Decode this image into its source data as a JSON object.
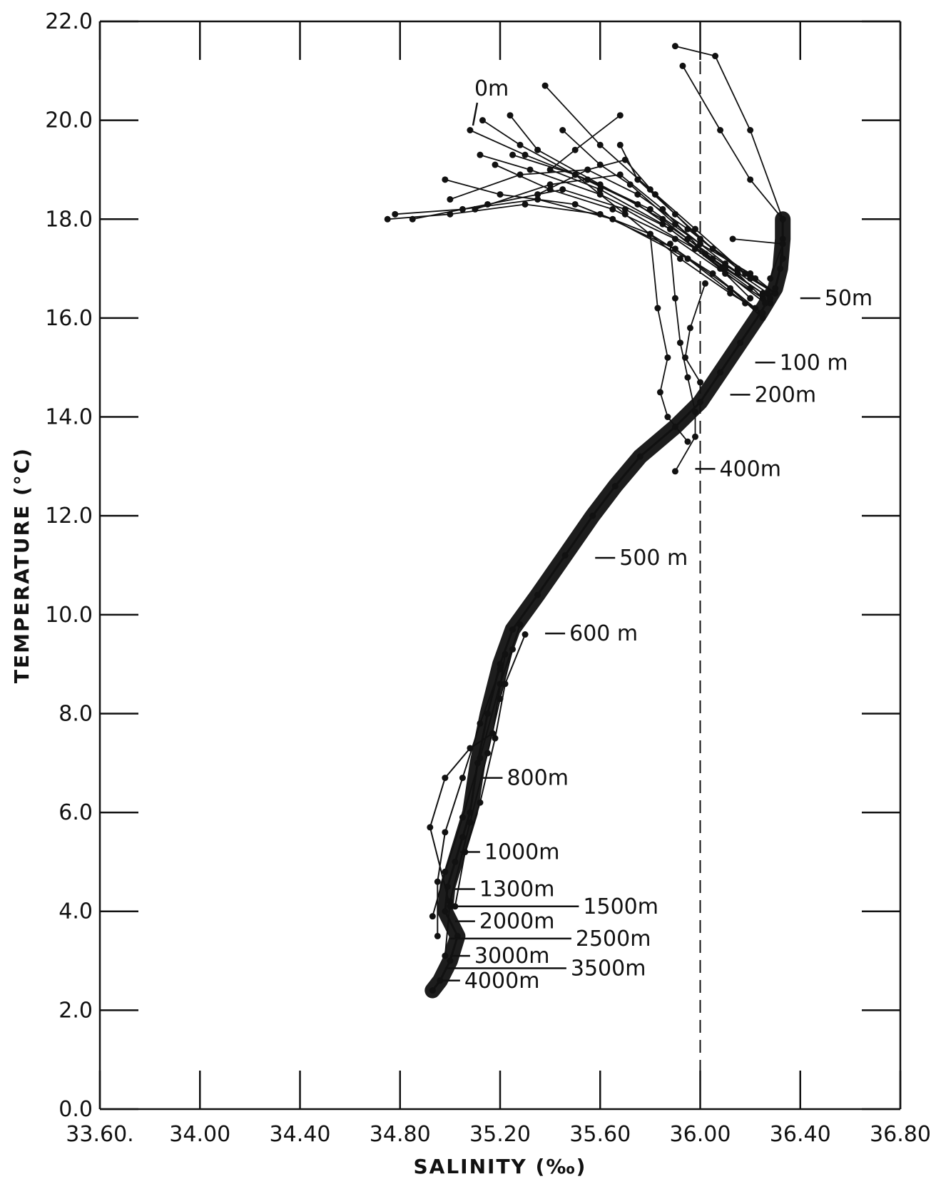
{
  "chart_data": {
    "type": "line",
    "title": "",
    "xlabel": "SALINITY (‰)",
    "ylabel": "TEMPERATURE (°C)",
    "xlim": [
      33.6,
      36.8
    ],
    "ylim": [
      0.0,
      22.0
    ],
    "x_tick_labels": [
      "33.60.",
      "34.00",
      "34.40",
      "34.80",
      "35.20",
      "35.60",
      "36.00",
      "36.40",
      "36.80"
    ],
    "x_tick_values": [
      33.6,
      34.0,
      34.4,
      34.8,
      35.2,
      35.6,
      36.0,
      36.4,
      36.8
    ],
    "y_tick_labels": [
      "0.0",
      "2.0",
      "4.0",
      "6.0",
      "8.0",
      "10.0",
      "12.0",
      "14.0",
      "16.0",
      "18.0",
      "20.0",
      "22.0"
    ],
    "y_tick_values": [
      0,
      2,
      4,
      6,
      8,
      10,
      12,
      14,
      16,
      18,
      20,
      22
    ],
    "reference_line": {
      "x": 36.0,
      "style": "dashed"
    },
    "grid": false,
    "main_profile": [
      [
        34.93,
        2.4
      ],
      [
        34.96,
        2.6
      ],
      [
        35.0,
        3.0
      ],
      [
        35.03,
        3.5
      ],
      [
        34.98,
        4.0
      ],
      [
        34.99,
        4.5
      ],
      [
        35.02,
        5.0
      ],
      [
        35.05,
        5.5
      ],
      [
        35.08,
        6.0
      ],
      [
        35.11,
        7.0
      ],
      [
        35.15,
        8.0
      ],
      [
        35.2,
        9.0
      ],
      [
        35.25,
        9.7
      ],
      [
        35.35,
        10.4
      ],
      [
        35.46,
        11.2
      ],
      [
        35.57,
        12.0
      ],
      [
        35.66,
        12.6
      ],
      [
        35.76,
        13.2
      ],
      [
        35.9,
        13.8
      ],
      [
        36.0,
        14.3
      ],
      [
        36.08,
        14.9
      ],
      [
        36.16,
        15.5
      ],
      [
        36.24,
        16.1
      ],
      [
        36.3,
        16.6
      ],
      [
        36.32,
        17.0
      ],
      [
        36.33,
        17.6
      ],
      [
        36.33,
        18.0
      ]
    ],
    "surface_profiles": [
      [
        [
          35.08,
          19.8
        ],
        [
          35.3,
          19.3
        ],
        [
          35.55,
          18.8
        ],
        [
          35.8,
          18.2
        ],
        [
          36.0,
          17.5
        ],
        [
          36.2,
          16.9
        ],
        [
          36.3,
          16.5
        ]
      ],
      [
        [
          35.13,
          20.0
        ],
        [
          35.28,
          19.5
        ],
        [
          35.5,
          18.9
        ],
        [
          35.75,
          18.3
        ],
        [
          35.95,
          17.6
        ],
        [
          36.15,
          16.9
        ],
        [
          36.25,
          16.4
        ]
      ],
      [
        [
          35.24,
          20.1
        ],
        [
          35.35,
          19.4
        ],
        [
          35.6,
          18.7
        ],
        [
          35.85,
          18.0
        ],
        [
          36.05,
          17.2
        ],
        [
          36.25,
          16.5
        ]
      ],
      [
        [
          35.18,
          19.1
        ],
        [
          35.4,
          18.6
        ],
        [
          35.65,
          18.2
        ],
        [
          35.9,
          17.6
        ],
        [
          36.1,
          16.9
        ],
        [
          36.28,
          16.3
        ]
      ],
      [
        [
          34.98,
          18.8
        ],
        [
          35.2,
          18.5
        ],
        [
          35.5,
          18.3
        ],
        [
          35.8,
          17.7
        ],
        [
          36.05,
          16.9
        ],
        [
          36.22,
          16.2
        ]
      ],
      [
        [
          34.75,
          18.0
        ],
        [
          35.0,
          18.1
        ],
        [
          35.3,
          18.3
        ],
        [
          35.6,
          18.1
        ],
        [
          35.9,
          17.4
        ],
        [
          36.12,
          16.6
        ],
        [
          36.25,
          16.0
        ]
      ],
      [
        [
          34.78,
          18.1
        ],
        [
          35.05,
          18.2
        ],
        [
          35.35,
          18.4
        ],
        [
          35.65,
          18.0
        ],
        [
          35.95,
          17.2
        ],
        [
          36.18,
          16.3
        ]
      ],
      [
        [
          34.85,
          18.0
        ],
        [
          35.15,
          18.3
        ],
        [
          35.45,
          18.6
        ],
        [
          35.7,
          18.2
        ],
        [
          35.98,
          17.4
        ],
        [
          36.2,
          16.6
        ]
      ],
      [
        [
          35.0,
          18.4
        ],
        [
          35.28,
          18.9
        ],
        [
          35.55,
          19.0
        ],
        [
          35.75,
          18.5
        ],
        [
          35.95,
          17.8
        ],
        [
          36.15,
          17.0
        ]
      ],
      [
        [
          35.1,
          18.2
        ],
        [
          35.4,
          18.7
        ],
        [
          35.68,
          18.9
        ],
        [
          35.85,
          18.2
        ],
        [
          36.02,
          17.3
        ],
        [
          36.2,
          16.4
        ]
      ],
      [
        [
          35.35,
          18.5
        ],
        [
          35.55,
          19.0
        ],
        [
          35.7,
          19.2
        ],
        [
          35.82,
          18.5
        ],
        [
          36.0,
          17.6
        ],
        [
          36.22,
          16.8
        ]
      ],
      [
        [
          35.45,
          19.8
        ],
        [
          35.6,
          19.1
        ],
        [
          35.72,
          18.7
        ],
        [
          35.9,
          17.9
        ],
        [
          36.1,
          17.1
        ],
        [
          36.27,
          16.5
        ]
      ],
      [
        [
          35.38,
          20.7
        ],
        [
          35.6,
          19.5
        ],
        [
          35.8,
          18.6
        ],
        [
          35.98,
          17.8
        ],
        [
          36.18,
          16.9
        ],
        [
          36.3,
          16.5
        ]
      ],
      [
        [
          35.68,
          20.1
        ],
        [
          35.5,
          19.4
        ],
        [
          35.4,
          19.0
        ],
        [
          35.6,
          18.6
        ],
        [
          35.85,
          17.9
        ],
        [
          36.1,
          17.0
        ],
        [
          36.28,
          16.4
        ]
      ],
      [
        [
          35.68,
          19.5
        ],
        [
          35.75,
          18.8
        ],
        [
          35.9,
          18.1
        ],
        [
          36.05,
          17.4
        ],
        [
          36.2,
          16.8
        ],
        [
          36.3,
          16.5
        ]
      ],
      [
        [
          35.9,
          21.5
        ],
        [
          36.06,
          21.3
        ],
        [
          36.2,
          19.8
        ],
        [
          36.33,
          18.0
        ],
        [
          36.33,
          17.2
        ],
        [
          36.3,
          16.6
        ]
      ],
      [
        [
          35.93,
          21.1
        ],
        [
          36.08,
          19.8
        ],
        [
          36.2,
          18.8
        ],
        [
          36.33,
          18.0
        ]
      ],
      [
        [
          35.8,
          17.7
        ],
        [
          35.83,
          16.2
        ],
        [
          35.87,
          15.2
        ],
        [
          35.84,
          14.5
        ],
        [
          35.87,
          14.0
        ],
        [
          35.95,
          13.5
        ]
      ],
      [
        [
          35.88,
          17.5
        ],
        [
          35.9,
          16.4
        ],
        [
          35.92,
          15.5
        ],
        [
          35.95,
          14.8
        ],
        [
          35.98,
          14.1
        ],
        [
          35.98,
          13.6
        ],
        [
          35.9,
          12.9
        ]
      ],
      [
        [
          36.13,
          17.6
        ],
        [
          36.33,
          17.5
        ],
        [
          36.28,
          16.8
        ]
      ],
      [
        [
          36.02,
          16.7
        ],
        [
          35.96,
          15.8
        ],
        [
          35.94,
          15.2
        ],
        [
          36.0,
          14.7
        ]
      ],
      [
        [
          35.25,
          19.3
        ],
        [
          35.5,
          18.9
        ],
        [
          35.7,
          18.1
        ],
        [
          35.92,
          17.2
        ],
        [
          36.12,
          16.5
        ],
        [
          36.25,
          16.1
        ]
      ],
      [
        [
          35.12,
          19.3
        ],
        [
          35.32,
          19.0
        ],
        [
          35.6,
          18.5
        ],
        [
          35.88,
          17.8
        ],
        [
          36.08,
          17.0
        ],
        [
          36.26,
          16.3
        ]
      ]
    ],
    "deep_profiles": [
      [
        [
          34.93,
          3.9
        ],
        [
          34.98,
          4.8
        ],
        [
          35.05,
          5.9
        ],
        [
          35.12,
          7.1
        ],
        [
          35.2,
          8.6
        ],
        [
          35.28,
          9.8
        ]
      ],
      [
        [
          34.95,
          3.5
        ],
        [
          34.95,
          4.6
        ],
        [
          34.98,
          5.6
        ],
        [
          35.05,
          6.7
        ],
        [
          35.12,
          7.8
        ],
        [
          35.2,
          8.9
        ]
      ],
      [
        [
          34.98,
          3.1
        ],
        [
          35.0,
          4.2
        ],
        [
          35.08,
          5.8
        ],
        [
          35.15,
          7.2
        ],
        [
          35.2,
          8.3
        ],
        [
          35.25,
          9.3
        ]
      ],
      [
        [
          35.0,
          4.1
        ],
        [
          34.92,
          5.7
        ],
        [
          34.98,
          6.7
        ],
        [
          35.08,
          7.3
        ],
        [
          35.17,
          7.6
        ],
        [
          35.22,
          9.2
        ]
      ],
      [
        [
          35.02,
          4.1
        ],
        [
          35.06,
          5.2
        ],
        [
          35.12,
          6.2
        ],
        [
          35.18,
          7.5
        ],
        [
          35.22,
          8.6
        ],
        [
          35.3,
          9.6
        ]
      ]
    ],
    "depth_labels": [
      {
        "label": "0m",
        "salinity": 35.12,
        "temperature": 20.5
      },
      {
        "label": "50m",
        "salinity": 36.4,
        "temperature": 16.4
      },
      {
        "label": "100 m",
        "salinity": 36.22,
        "temperature": 15.1
      },
      {
        "label": "200m",
        "salinity": 36.12,
        "temperature": 14.45
      },
      {
        "label": "400m",
        "salinity": 35.98,
        "temperature": 12.95
      },
      {
        "label": "500 m",
        "salinity": 35.58,
        "temperature": 11.15
      },
      {
        "label": "600 m",
        "salinity": 35.38,
        "temperature": 9.62
      },
      {
        "label": "800m",
        "salinity": 35.13,
        "temperature": 6.7
      },
      {
        "label": "1000m",
        "salinity": 35.04,
        "temperature": 5.2
      },
      {
        "label": "1300m",
        "salinity": 35.02,
        "temperature": 4.45
      },
      {
        "label": "1500m",
        "salinity": 35.03,
        "temperature": 4.1
      },
      {
        "label": "2000m",
        "salinity": 35.02,
        "temperature": 3.8
      },
      {
        "label": "2500m",
        "salinity": 35.0,
        "temperature": 3.45
      },
      {
        "label": "3000m",
        "salinity": 35.0,
        "temperature": 3.1
      },
      {
        "label": "3500m",
        "salinity": 34.98,
        "temperature": 2.85
      },
      {
        "label": "4000m",
        "salinity": 34.96,
        "temperature": 2.6
      }
    ]
  }
}
